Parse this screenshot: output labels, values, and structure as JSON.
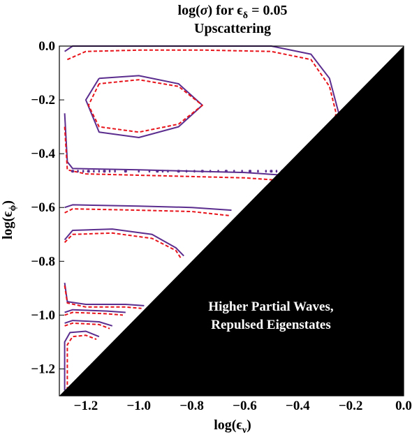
{
  "chart_data": {
    "type": "contour",
    "title": "log(σ) for ϵδ = 0.05",
    "subtitle": "Upscattering",
    "title_parts": {
      "prefix": "log(",
      "sigma": "σ",
      "mid": ") for ",
      "eps": "ϵ",
      "eps_sub": "δ",
      "suffix": " = 0.05"
    },
    "xlabel_parts": {
      "prefix": "log(",
      "eps": "ϵ",
      "sub": "ν",
      "suffix": ")"
    },
    "ylabel_parts": {
      "prefix": "log(",
      "eps": "ϵ",
      "sub": "ϕ",
      "suffix": ")"
    },
    "xlim": [
      -1.3,
      0.0
    ],
    "ylim": [
      -1.3,
      0.0
    ],
    "x_ticks": [
      -1.2,
      -1.0,
      -0.8,
      -0.6,
      -0.4,
      -0.2,
      0.0
    ],
    "x_tick_labels": [
      "−1.2",
      "−1.0",
      "−0.8",
      "−0.6",
      "−0.4",
      "−0.2",
      "0.0"
    ],
    "y_ticks": [
      0.0,
      -0.2,
      -0.4,
      -0.6,
      -0.8,
      -1.0,
      -1.2
    ],
    "y_tick_labels": [
      "0.0",
      "−0.2",
      "−0.4",
      "−0.6",
      "−0.8",
      "−1.0",
      "−1.2"
    ],
    "excluded_region_label_lines": [
      "Higher Partial Waves,",
      "Repulsed Eigenstates"
    ],
    "excluded_region_color": "#000000",
    "series_colors": {
      "solid": "#5b2d8e",
      "dashed": "#e8141b"
    },
    "contours": [
      {
        "style": "solid",
        "points": [
          [
            -1.28,
            -0.02
          ],
          [
            -1.25,
            0.0
          ],
          [
            -1.0,
            0.0
          ],
          [
            -0.75,
            0.0
          ],
          [
            -0.5,
            0.0
          ],
          [
            -0.35,
            -0.03
          ],
          [
            -0.28,
            -0.12
          ],
          [
            -0.245,
            -0.25
          ],
          [
            -0.26,
            -0.32
          ],
          [
            -0.3,
            -0.37
          ]
        ]
      },
      {
        "style": "dashed",
        "points": [
          [
            -1.27,
            -0.05
          ],
          [
            -1.2,
            -0.02
          ],
          [
            -1.0,
            -0.015
          ],
          [
            -0.75,
            -0.015
          ],
          [
            -0.5,
            -0.02
          ],
          [
            -0.35,
            -0.05
          ],
          [
            -0.28,
            -0.15
          ],
          [
            -0.255,
            -0.25
          ],
          [
            -0.27,
            -0.31
          ],
          [
            -0.31,
            -0.36
          ]
        ]
      },
      {
        "style": "solid",
        "points": [
          [
            -1.15,
            -0.12
          ],
          [
            -1.2,
            -0.2
          ],
          [
            -1.15,
            -0.32
          ],
          [
            -1.0,
            -0.34
          ],
          [
            -0.85,
            -0.3
          ],
          [
            -0.76,
            -0.22
          ],
          [
            -0.85,
            -0.14
          ],
          [
            -1.0,
            -0.11
          ],
          [
            -1.15,
            -0.12
          ]
        ]
      },
      {
        "style": "dashed",
        "points": [
          [
            -1.15,
            -0.14
          ],
          [
            -1.19,
            -0.22
          ],
          [
            -1.15,
            -0.3
          ],
          [
            -1.0,
            -0.32
          ],
          [
            -0.85,
            -0.29
          ],
          [
            -0.76,
            -0.22
          ],
          [
            -0.85,
            -0.15
          ],
          [
            -1.0,
            -0.125
          ],
          [
            -1.15,
            -0.14
          ]
        ]
      },
      {
        "style": "solid",
        "points": [
          [
            -1.28,
            -0.25
          ],
          [
            -1.27,
            -0.43
          ],
          [
            -1.25,
            -0.455
          ],
          [
            -1.0,
            -0.46
          ],
          [
            -0.8,
            -0.465
          ],
          [
            -0.6,
            -0.47
          ],
          [
            -0.45,
            -0.48
          ],
          [
            -0.4,
            -0.48
          ]
        ]
      },
      {
        "style": "dashed",
        "points": [
          [
            -1.28,
            -0.3
          ],
          [
            -1.27,
            -0.46
          ],
          [
            -1.2,
            -0.475
          ],
          [
            -1.0,
            -0.48
          ],
          [
            -0.8,
            -0.485
          ],
          [
            -0.6,
            -0.49
          ],
          [
            -0.45,
            -0.5
          ],
          [
            -0.41,
            -0.5
          ]
        ]
      },
      {
        "style": "solid",
        "points": [
          [
            -1.28,
            -0.6
          ],
          [
            -1.25,
            -0.59
          ],
          [
            -1.0,
            -0.595
          ],
          [
            -0.8,
            -0.6
          ],
          [
            -0.65,
            -0.61
          ]
        ]
      },
      {
        "style": "dashed",
        "points": [
          [
            -1.28,
            -0.62
          ],
          [
            -1.25,
            -0.605
          ],
          [
            -1.0,
            -0.61
          ],
          [
            -0.8,
            -0.615
          ],
          [
            -0.66,
            -0.63
          ]
        ]
      },
      {
        "style": "solid",
        "points": [
          [
            -1.28,
            -0.72
          ],
          [
            -1.25,
            -0.685
          ],
          [
            -1.1,
            -0.68
          ],
          [
            -0.95,
            -0.7
          ],
          [
            -0.86,
            -0.75
          ],
          [
            -0.83,
            -0.78
          ]
        ]
      },
      {
        "style": "dashed",
        "points": [
          [
            -1.28,
            -0.73
          ],
          [
            -1.25,
            -0.7
          ],
          [
            -1.1,
            -0.695
          ],
          [
            -0.95,
            -0.715
          ],
          [
            -0.86,
            -0.76
          ],
          [
            -0.84,
            -0.79
          ]
        ]
      },
      {
        "style": "solid",
        "points": [
          [
            -1.28,
            -0.88
          ],
          [
            -1.27,
            -0.95
          ],
          [
            -1.2,
            -0.96
          ],
          [
            -1.05,
            -0.96
          ],
          [
            -0.98,
            -0.965
          ]
        ]
      },
      {
        "style": "dashed",
        "points": [
          [
            -1.28,
            -0.89
          ],
          [
            -1.27,
            -0.955
          ],
          [
            -1.2,
            -0.97
          ],
          [
            -1.05,
            -0.97
          ],
          [
            -0.99,
            -0.975
          ]
        ]
      },
      {
        "style": "solid",
        "points": [
          [
            -1.28,
            -0.99
          ],
          [
            -1.25,
            -0.98
          ],
          [
            -1.12,
            -0.985
          ],
          [
            -1.05,
            -0.99
          ]
        ]
      },
      {
        "style": "dashed",
        "points": [
          [
            -1.28,
            -1.0
          ],
          [
            -1.25,
            -0.99
          ],
          [
            -1.12,
            -0.995
          ],
          [
            -1.06,
            -1.0
          ]
        ]
      },
      {
        "style": "solid",
        "points": [
          [
            -1.28,
            -1.03
          ],
          [
            -1.25,
            -1.02
          ],
          [
            -1.15,
            -1.025
          ],
          [
            -1.1,
            -1.04
          ]
        ]
      },
      {
        "style": "dashed",
        "points": [
          [
            -1.28,
            -1.04
          ],
          [
            -1.25,
            -1.03
          ],
          [
            -1.15,
            -1.035
          ],
          [
            -1.11,
            -1.05
          ]
        ]
      },
      {
        "style": "solid",
        "points": [
          [
            -1.28,
            -1.28
          ],
          [
            -1.28,
            -1.1
          ],
          [
            -1.26,
            -1.065
          ],
          [
            -1.2,
            -1.06
          ],
          [
            -1.15,
            -1.08
          ]
        ]
      },
      {
        "style": "dashed",
        "points": [
          [
            -1.27,
            -1.28
          ],
          [
            -1.27,
            -1.11
          ],
          [
            -1.25,
            -1.08
          ],
          [
            -1.2,
            -1.075
          ],
          [
            -1.16,
            -1.09
          ]
        ]
      }
    ],
    "noise_segments": [
      {
        "y": -0.465,
        "x": [
          -1.25,
          -1.23,
          -1.21,
          -1.19,
          -1.17,
          -1.15,
          -1.13,
          -1.11,
          -1.09,
          -1.05,
          -1.0,
          -0.96,
          -0.93,
          -0.91,
          -0.89,
          -0.85,
          -0.82,
          -0.79,
          -0.76,
          -0.73,
          -0.7,
          -0.67,
          -0.64,
          -0.61,
          -0.58,
          -0.55,
          -0.52,
          -0.5,
          -0.48,
          -0.46,
          -0.44,
          -0.42
        ]
      }
    ]
  }
}
